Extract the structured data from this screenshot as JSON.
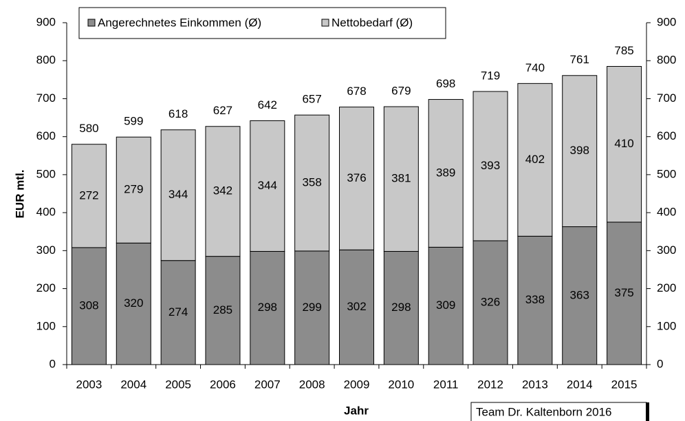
{
  "chart_data": {
    "type": "stacked_bar",
    "x_label": "Jahr",
    "y_label": "EUR mtl.",
    "footnote": "Team Dr. Kaltenborn 2016",
    "categories": [
      "2003",
      "2004",
      "2005",
      "2006",
      "2007",
      "2008",
      "2009",
      "2010",
      "2011",
      "2012",
      "2013",
      "2014",
      "2015"
    ],
    "series": [
      {
        "name": "Angerechnetes Einkommen (Ø)",
        "color": "#8c8c8c",
        "values": [
          308,
          320,
          274,
          285,
          298,
          299,
          302,
          298,
          309,
          326,
          338,
          363,
          375
        ]
      },
      {
        "name": "Nettobedarf (Ø)",
        "color": "#c8c8c8",
        "values": [
          272,
          279,
          344,
          342,
          344,
          358,
          376,
          381,
          389,
          393,
          402,
          398,
          410
        ]
      }
    ],
    "totals": [
      580,
      599,
      618,
      627,
      642,
      657,
      678,
      679,
      698,
      719,
      740,
      761,
      785
    ],
    "ylim": [
      0,
      900
    ],
    "yticks": [
      0,
      100,
      200,
      300,
      400,
      500,
      600,
      700,
      800,
      900
    ],
    "y2lim": [
      0,
      900
    ],
    "y2ticks": [
      0,
      100,
      200,
      300,
      400,
      500,
      600,
      700,
      800,
      900
    ],
    "grid": false
  }
}
